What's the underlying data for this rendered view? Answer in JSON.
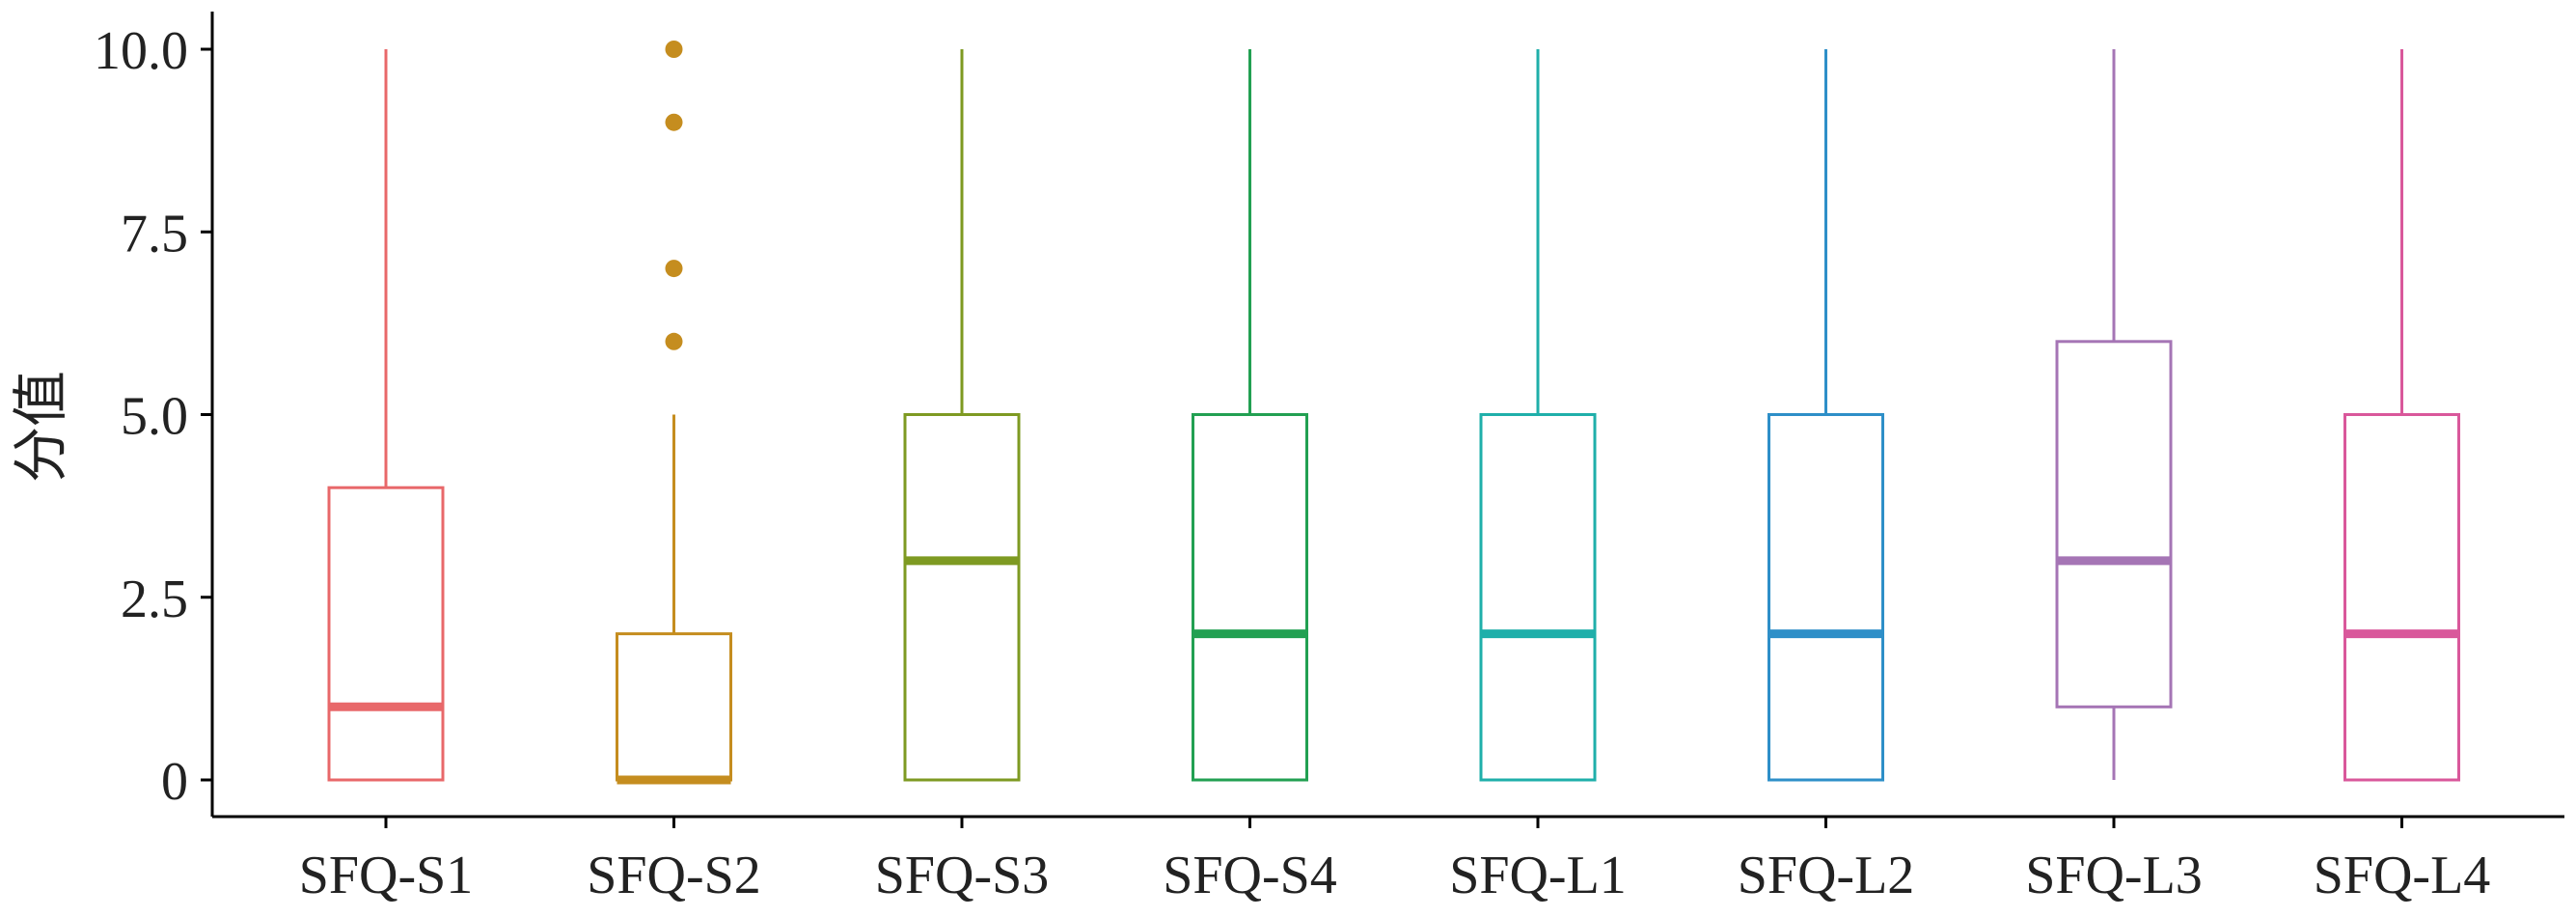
{
  "chart_data": {
    "type": "box",
    "title": "",
    "xlabel": "",
    "ylabel": "分值",
    "ylim": [
      0,
      10
    ],
    "yticks": [
      0,
      2.5,
      5,
      7.5,
      10
    ],
    "ytick_labels": [
      "0",
      "2.5",
      "5.0",
      "7.5",
      "10.0"
    ],
    "grid": false,
    "legend": "none",
    "categories": [
      "SFQ-S1",
      "SFQ-S2",
      "SFQ-S3",
      "SFQ-S4",
      "SFQ-L1",
      "SFQ-L2",
      "SFQ-L3",
      "SFQ-L4"
    ],
    "boxes": [
      {
        "category": "SFQ-S1",
        "min": 0,
        "q1": 0,
        "median": 1,
        "q3": 4,
        "max": 10,
        "outliers": [],
        "color": "#E8686A"
      },
      {
        "category": "SFQ-S2",
        "min": 0,
        "q1": 0,
        "median": 0,
        "q3": 2,
        "max": 5,
        "outliers": [
          6,
          7,
          9,
          10
        ],
        "color": "#C58D1F"
      },
      {
        "category": "SFQ-S3",
        "min": 0,
        "q1": 0,
        "median": 3,
        "q3": 5,
        "max": 10,
        "outliers": [],
        "color": "#7E9A22"
      },
      {
        "category": "SFQ-S4",
        "min": 0,
        "q1": 0,
        "median": 2,
        "q3": 5,
        "max": 10,
        "outliers": [],
        "color": "#22A052"
      },
      {
        "category": "SFQ-L1",
        "min": 0,
        "q1": 0,
        "median": 2,
        "q3": 5,
        "max": 10,
        "outliers": [],
        "color": "#1FAFAA"
      },
      {
        "category": "SFQ-L2",
        "min": 0,
        "q1": 0,
        "median": 2,
        "q3": 5,
        "max": 10,
        "outliers": [],
        "color": "#2E8FC8"
      },
      {
        "category": "SFQ-L3",
        "min": 0,
        "q1": 1,
        "median": 3,
        "q3": 6,
        "max": 10,
        "outliers": [],
        "color": "#A575B5"
      },
      {
        "category": "SFQ-L4",
        "min": 0,
        "q1": 0,
        "median": 2,
        "q3": 5,
        "max": 10,
        "outliers": [],
        "color": "#D9589B"
      }
    ]
  }
}
